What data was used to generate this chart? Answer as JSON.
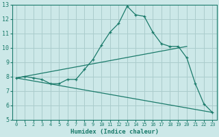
{
  "xlabel": "Humidex (Indice chaleur)",
  "bg_color": "#cce8e8",
  "grid_color": "#aacccc",
  "line_color": "#1a7a6a",
  "xlim": [
    -0.5,
    23.5
  ],
  "ylim": [
    5,
    13
  ],
  "xticks": [
    0,
    1,
    2,
    3,
    4,
    5,
    6,
    7,
    8,
    9,
    10,
    11,
    12,
    13,
    14,
    15,
    16,
    17,
    18,
    19,
    20,
    21,
    22,
    23
  ],
  "yticks": [
    5,
    6,
    7,
    8,
    9,
    10,
    11,
    12,
    13
  ],
  "line1_x": [
    0,
    1,
    2,
    3,
    4,
    5,
    6,
    7,
    8,
    9,
    10,
    11,
    12,
    13,
    14,
    15,
    16,
    17,
    18,
    19,
    20,
    21,
    22,
    23
  ],
  "line1_y": [
    7.9,
    8.0,
    7.9,
    7.8,
    7.5,
    7.5,
    7.8,
    7.8,
    8.5,
    9.2,
    10.2,
    11.1,
    11.7,
    12.9,
    12.3,
    12.2,
    11.1,
    10.3,
    10.1,
    10.1,
    9.3,
    7.5,
    6.1,
    5.5
  ],
  "line2_x": [
    0,
    20
  ],
  "line2_y": [
    7.9,
    10.1
  ],
  "line3_x": [
    0,
    23
  ],
  "line3_y": [
    7.9,
    5.5
  ],
  "xtick_fontsize": 5.0,
  "ytick_fontsize": 6.0,
  "xlabel_fontsize": 6.5
}
